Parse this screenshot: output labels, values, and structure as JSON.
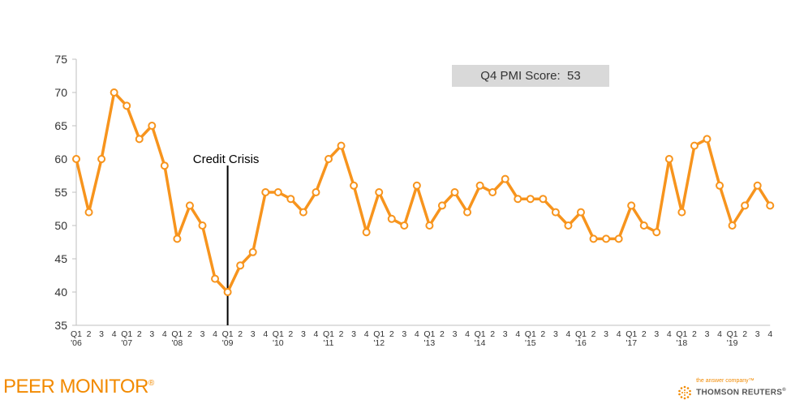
{
  "chart_data": {
    "type": "line",
    "title": "",
    "xlabel": "",
    "ylabel": "",
    "ylim": [
      35,
      75
    ],
    "yticks": [
      35,
      40,
      45,
      50,
      55,
      60,
      65,
      70,
      75
    ],
    "grid": false,
    "color": "#f7941d",
    "x_quarter_labels": [
      "Q1",
      "2",
      "3",
      "4",
      "Q1",
      "2",
      "3",
      "4",
      "Q1",
      "2",
      "3",
      "4",
      "Q1",
      "2",
      "3",
      "4",
      "Q1",
      "2",
      "3",
      "4",
      "Q1",
      "2",
      "3",
      "4",
      "Q1",
      "2",
      "3",
      "4",
      "Q1",
      "2",
      "3",
      "4",
      "Q1",
      "2",
      "3",
      "4",
      "Q1",
      "2",
      "3",
      "4",
      "Q1",
      "2",
      "3",
      "4",
      "Q1",
      "2",
      "3",
      "4",
      "Q1",
      "2",
      "3",
      "4",
      "Q1",
      "2",
      "3",
      "4"
    ],
    "x_year_labels": [
      "'06",
      "'07",
      "'08",
      "'09",
      "'10",
      "'11",
      "'12",
      "'13",
      "'14",
      "'15",
      "'16",
      "'17",
      "'18",
      "'19"
    ],
    "series": [
      {
        "values": [
          60,
          52,
          60,
          70,
          68,
          63,
          65,
          59,
          48,
          53,
          50,
          42,
          40,
          44,
          46,
          55,
          55,
          54,
          52,
          55,
          60,
          62,
          56,
          49,
          55,
          51,
          50,
          56,
          50,
          53,
          55,
          52,
          56,
          55,
          57,
          54,
          54,
          54,
          52,
          50,
          52,
          48,
          48,
          48,
          53,
          50,
          49,
          60,
          52,
          62,
          63,
          56,
          50,
          53,
          56,
          53
        ]
      }
    ],
    "annotations": [
      {
        "text": "Credit Crisis",
        "x_index": 12
      }
    ]
  },
  "score_box": {
    "label": "Q4 PMI Score:  53"
  },
  "branding": {
    "left": "PEER MONITOR",
    "left_mark": "®",
    "right_tagline": "the answer company™",
    "right_name": "THOMSON REUTERS",
    "right_mark": "®"
  }
}
